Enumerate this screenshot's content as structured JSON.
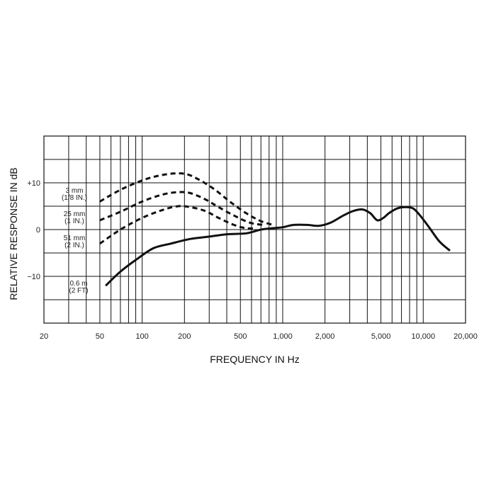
{
  "chart_data": {
    "type": "line",
    "xlabel": "FREQUENCY IN Hz",
    "ylabel": "RELATIVE RESPONSE IN dB",
    "xscale": "log",
    "xlim": [
      20,
      20000
    ],
    "ylim": [
      -20,
      20
    ],
    "grid": true,
    "x_tick_labels": [
      {
        "value": 20,
        "label": "20"
      },
      {
        "value": 50,
        "label": "50"
      },
      {
        "value": 100,
        "label": "100"
      },
      {
        "value": 200,
        "label": "200"
      },
      {
        "value": 500,
        "label": "500"
      },
      {
        "value": 1000,
        "label": "1,000"
      },
      {
        "value": 2000,
        "label": "2,000"
      },
      {
        "value": 5000,
        "label": "5,000"
      },
      {
        "value": 10000,
        "label": "10,000"
      },
      {
        "value": 20000,
        "label": "20,000"
      }
    ],
    "y_tick_labels": [
      {
        "value": 10,
        "label": "+10"
      },
      {
        "value": 0,
        "label": "0"
      },
      {
        "value": -10,
        "label": "−10"
      }
    ],
    "series": [
      {
        "name_lines": [
          "3 mm",
          "(1/8 IN.)"
        ],
        "style": "dashed",
        "x": [
          50,
          70,
          100,
          130,
          170,
          210,
          260,
          330,
          420,
          550,
          700,
          850
        ],
        "y": [
          6,
          8.5,
          10.5,
          11.5,
          12,
          11.8,
          10.5,
          8.5,
          6,
          3.5,
          1.8,
          1
        ]
      },
      {
        "name_lines": [
          "25 mm",
          "(1 IN.)"
        ],
        "style": "dashed",
        "x": [
          50,
          70,
          100,
          140,
          180,
          220,
          280,
          350,
          450,
          580,
          720
        ],
        "y": [
          2,
          3.8,
          6,
          7.5,
          8,
          7.8,
          6.5,
          4.8,
          3,
          1.5,
          1
        ]
      },
      {
        "name_lines": [
          "51 mm",
          "(2 IN.)"
        ],
        "style": "dashed",
        "x": [
          50,
          70,
          100,
          140,
          180,
          220,
          280,
          350,
          450,
          550,
          650
        ],
        "y": [
          -3,
          0,
          2.5,
          4.2,
          5,
          4.8,
          4,
          2.5,
          1,
          0.3,
          0.3
        ]
      },
      {
        "name_lines": [
          "0.6 m",
          "(2 FT)"
        ],
        "style": "solid",
        "x": [
          55,
          70,
          90,
          120,
          160,
          220,
          300,
          400,
          550,
          700,
          850,
          1000,
          1200,
          1500,
          1800,
          2200,
          2700,
          3200,
          3700,
          4200,
          4700,
          5200,
          5700,
          6500,
          7500,
          8500,
          9500,
          11000,
          13000,
          15500
        ],
        "y": [
          -12,
          -9,
          -6.5,
          -4,
          -3,
          -2,
          -1.5,
          -1,
          -0.8,
          0,
          0.3,
          0.5,
          1,
          1,
          0.8,
          1.5,
          3,
          4,
          4.3,
          3.5,
          2,
          2.5,
          3.5,
          4.5,
          4.8,
          4.5,
          3,
          0.5,
          -2.5,
          -4.5
        ]
      }
    ]
  }
}
